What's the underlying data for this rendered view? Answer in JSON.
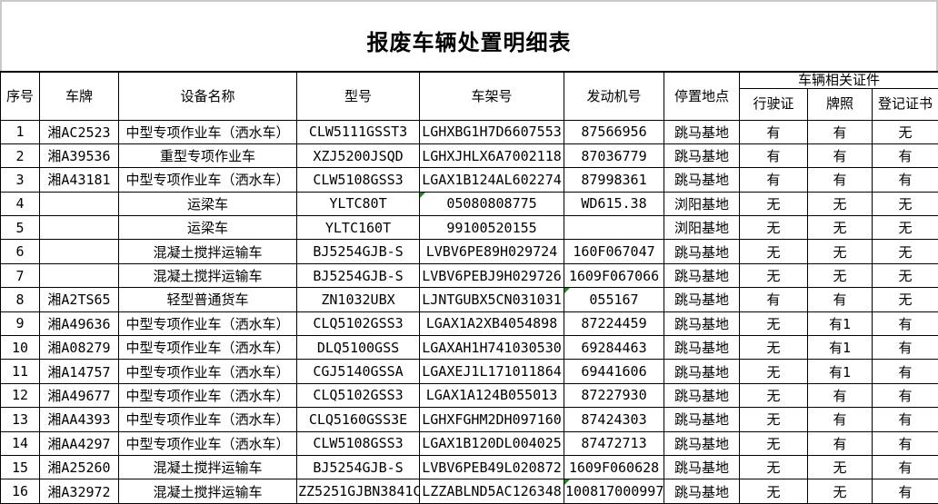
{
  "title": "报废车辆处置明细表",
  "colors": {
    "border": "#000000",
    "page_edge_line": "#c9c9c9",
    "error_indicator_green": "#1e8a1e",
    "background": "#ffffff"
  },
  "table": {
    "header": {
      "seq": "序号",
      "plate": "车牌",
      "device": "设备名称",
      "model": "型号",
      "vin": "车架号",
      "engine": "发动机号",
      "location": "停置地点",
      "certs_group": "车辆相关证件",
      "license": "行驶证",
      "plate_cert": "牌照",
      "registration": "登记证书"
    },
    "rows": [
      {
        "seq": "1",
        "plate": "湘AC2523",
        "device": "中型专项作业车（洒水车）",
        "model": "CLW5111GSST3",
        "vin": "LGHXBG1H7D6607553",
        "engine": "87566956",
        "location": "跳马基地",
        "license": "有",
        "plate_cert": "有",
        "registration": "无",
        "green": []
      },
      {
        "seq": "2",
        "plate": "湘A39536",
        "device": "重型专项作业车",
        "model": "XZJ5200JSQD",
        "vin": "LGHXJHLX6A7002118",
        "engine": "87036779",
        "location": "跳马基地",
        "license": "有",
        "plate_cert": "有",
        "registration": "有",
        "green": []
      },
      {
        "seq": "3",
        "plate": "湘A43181",
        "device": "中型专项作业车（洒水车）",
        "model": "CLW5108GSS3",
        "vin": "LGAX1B124AL602274",
        "engine": "87998361",
        "location": "跳马基地",
        "license": "有",
        "plate_cert": "有",
        "registration": "有",
        "green": []
      },
      {
        "seq": "4",
        "plate": "",
        "device": "运梁车",
        "model": "YLTC80T",
        "vin": "05080808775",
        "engine": "WD615.38",
        "location": "浏阳基地",
        "license": "无",
        "plate_cert": "无",
        "registration": "无",
        "green": [
          "vin"
        ]
      },
      {
        "seq": "5",
        "plate": "",
        "device": "运梁车",
        "model": "YLTC160T",
        "vin": "99100520155",
        "engine": "",
        "location": "浏阳基地",
        "license": "无",
        "plate_cert": "无",
        "registration": "无",
        "green": []
      },
      {
        "seq": "6",
        "plate": "",
        "device": "混凝土搅拌运输车",
        "model": "BJ5254GJB-S",
        "vin": "LVBV6PE89H029724",
        "engine": "160F067047",
        "location": "跳马基地",
        "license": "无",
        "plate_cert": "无",
        "registration": "无",
        "green": []
      },
      {
        "seq": "7",
        "plate": "",
        "device": "混凝土搅拌运输车",
        "model": "BJ5254GJB-S",
        "vin": "LVBV6PEBJ9H029726",
        "engine": "1609F067066",
        "location": "跳马基地",
        "license": "无",
        "plate_cert": "无",
        "registration": "无",
        "green": []
      },
      {
        "seq": "8",
        "plate": "湘A2TS65",
        "device": "轻型普通货车",
        "model": "ZN1032UBX",
        "vin": "LJNTGUBX5CN031031",
        "engine": "055167",
        "location": "跳马基地",
        "license": "有",
        "plate_cert": "有",
        "registration": "无",
        "green": [
          "engine"
        ]
      },
      {
        "seq": "9",
        "plate": "湘A49636",
        "device": "中型专项作业车（洒水车）",
        "model": "CLQ5102GSS3",
        "vin": "LGAX1A2XB4054898",
        "engine": "87224459",
        "location": "跳马基地",
        "license": "无",
        "plate_cert": "有1",
        "registration": "有",
        "green": []
      },
      {
        "seq": "10",
        "plate": "湘A08279",
        "device": "中型专项作业车（洒水车）",
        "model": "DLQ5100GSS",
        "vin": "LGAXAH1H741030530",
        "engine": "69284463",
        "location": "跳马基地",
        "license": "无",
        "plate_cert": "有1",
        "registration": "有",
        "green": []
      },
      {
        "seq": "11",
        "plate": "湘A14757",
        "device": "中型专项作业车（洒水车）",
        "model": "CGJ5140GSSA",
        "vin": "LGAXEJ1L171011864",
        "engine": "69441606",
        "location": "跳马基地",
        "license": "无",
        "plate_cert": "有1",
        "registration": "有",
        "green": []
      },
      {
        "seq": "12",
        "plate": "湘A49677",
        "device": "中型专项作业车（洒水车）",
        "model": "CLQ5102GSS3",
        "vin": "LGAX1A124B055013",
        "engine": "87227930",
        "location": "跳马基地",
        "license": "无",
        "plate_cert": "有",
        "registration": "有",
        "green": []
      },
      {
        "seq": "13",
        "plate": "湘AA4393",
        "device": "中型专项作业车（洒水车）",
        "model": "CLQ5160GSS3E",
        "vin": "LGHXFGHM2DH097160",
        "engine": "87424303",
        "location": "跳马基地",
        "license": "无",
        "plate_cert": "有",
        "registration": "有",
        "green": []
      },
      {
        "seq": "14",
        "plate": "湘AA4297",
        "device": "中型专项作业车（洒水车）",
        "model": "CLW5108GSS3",
        "vin": "LGAX1B120DL004025",
        "engine": "87472713",
        "location": "跳马基地",
        "license": "无",
        "plate_cert": "有",
        "registration": "有",
        "green": []
      },
      {
        "seq": "15",
        "plate": "湘A25260",
        "device": "混凝土搅拌运输车",
        "model": "BJ5254GJB-S",
        "vin": "LVBV6PEB49L020872",
        "engine": "1609F060628",
        "location": "跳马基地",
        "license": "无",
        "plate_cert": "无",
        "registration": "有",
        "green": []
      },
      {
        "seq": "16",
        "plate": "湘A32972",
        "device": "混凝土搅拌运输车",
        "model": "ZZ5251GJBN3841C",
        "vin": "LZZABLND5AC126348",
        "engine": "100817000997",
        "location": "跳马基地",
        "license": "无",
        "plate_cert": "无",
        "registration": "有",
        "green": [
          "engine"
        ]
      }
    ]
  }
}
